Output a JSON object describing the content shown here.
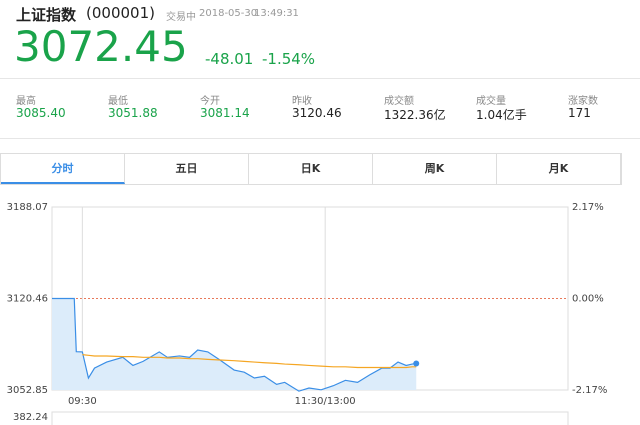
{
  "header": {
    "name": "上证指数",
    "code": "(000001)",
    "status": "交易中",
    "date": "2018-05-30",
    "time": "13:49:31",
    "price": "3072.45",
    "change": "-48.01",
    "change_pct": "-1.54%"
  },
  "stats": [
    {
      "label": "最高",
      "value": "3085.40"
    },
    {
      "label": "最低",
      "value": "3051.88"
    },
    {
      "label": "今开",
      "value": "3081.14"
    },
    {
      "label": "昨收",
      "value": "3120.46"
    },
    {
      "label": "成交额",
      "value": "1322.36亿"
    },
    {
      "label": "成交量",
      "value": "1.04亿手"
    },
    {
      "label": "涨家数",
      "value": "171"
    }
  ],
  "tabs": {
    "items": [
      "分时",
      "五日",
      "日K",
      "周K",
      "月K"
    ],
    "active": 0
  },
  "chart_data": {
    "type": "line",
    "x": [
      -15,
      -4,
      -3,
      0,
      3,
      6,
      12,
      20,
      25,
      30,
      38,
      42,
      48,
      53,
      57,
      62,
      68,
      75,
      80,
      85,
      90,
      96,
      100,
      107,
      112,
      118,
      124,
      130,
      136,
      142,
      148,
      152,
      156,
      160,
      163,
      165
    ],
    "series": [
      {
        "color": "#3a8ee6",
        "area": "#dcecfa",
        "values": [
          3120.46,
          3120.46,
          3081.14,
          3081,
          3061.7,
          3069,
          3073.5,
          3077,
          3071,
          3074,
          3081,
          3077,
          3078,
          3077,
          3082.4,
          3081,
          3075,
          3067.6,
          3066,
          3061.7,
          3063,
          3057,
          3058.5,
          3052,
          3054.3,
          3053,
          3056,
          3060,
          3058.5,
          3064,
          3069,
          3069,
          3073.5,
          3071,
          3072,
          3072.45
        ]
      },
      {
        "color": "#f5a623",
        "values": [
          null,
          null,
          null,
          3079,
          3078.5,
          3078,
          3078,
          3077.5,
          3077.5,
          3077,
          3077,
          3076.5,
          3076.5,
          3076,
          3076,
          3075.5,
          3075,
          3074.5,
          3074,
          3073.5,
          3073,
          3072.5,
          3072,
          3071.5,
          3071,
          3070.5,
          3070,
          3070,
          3069.5,
          3069.5,
          3069.5,
          3069.5,
          3069.5,
          3069.5,
          3070,
          3070
        ]
      }
    ],
    "xlim": [
      -15,
      240
    ],
    "xticks": [
      {
        "value": 0,
        "label": "09:30"
      },
      {
        "value": 120,
        "label": "11:30/13:00"
      }
    ],
    "ylim": [
      3052.85,
      3188.07
    ],
    "yticks": [
      3052.85,
      3120.46,
      3188.07
    ],
    "baseline": 3120.46,
    "y2lim": [
      -2.17,
      2.17
    ],
    "y2ticks": [
      {
        "value": 2.17,
        "label": "2.17%"
      },
      {
        "value": 0,
        "label": "0.00%"
      },
      {
        "value": -2.17,
        "label": "-2.17%"
      }
    ],
    "volume_yticks": [
      382.24
    ]
  }
}
